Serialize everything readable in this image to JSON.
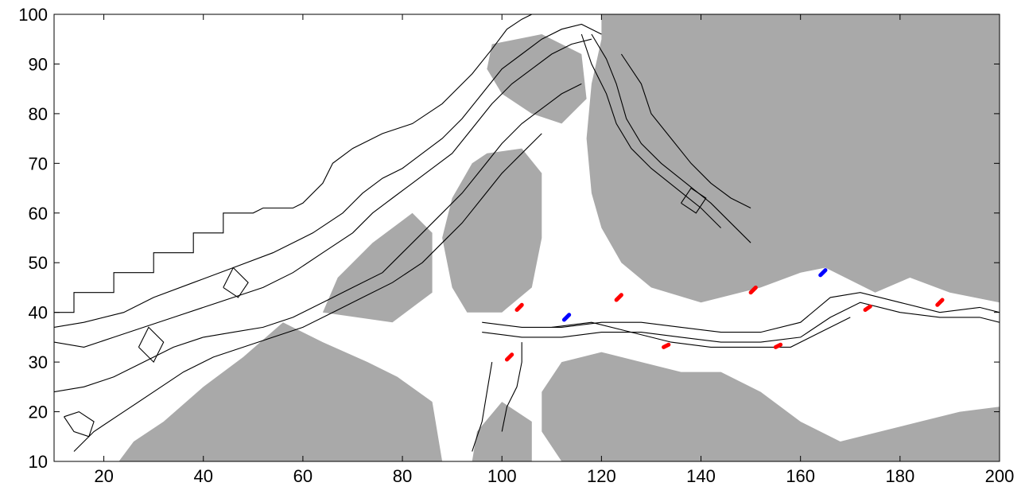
{
  "chart_data": {
    "type": "heatmap",
    "title": "",
    "xlabel": "",
    "ylabel": "",
    "xlim": [
      10,
      200
    ],
    "ylim": [
      10,
      100
    ],
    "x_ticks": [
      20,
      40,
      60,
      80,
      100,
      120,
      140,
      160,
      180,
      200
    ],
    "y_ticks": [
      10,
      20,
      30,
      40,
      50,
      60,
      70,
      80,
      90,
      100
    ],
    "x_tick_labels": [
      "20",
      "40",
      "60",
      "80",
      "100",
      "120",
      "140",
      "160",
      "180",
      "200"
    ],
    "y_tick_labels": [
      "10",
      "20",
      "30",
      "40",
      "50",
      "60",
      "70",
      "80",
      "90",
      "100"
    ],
    "grid": false,
    "colors": {
      "land": "#a9a9a9",
      "water": "#ffffff",
      "contour": "#000000",
      "red_marker": "#ff0000",
      "blue_marker": "#0000ff"
    },
    "land_regions": [
      {
        "name": "upper-right-land",
        "points": [
          [
            120,
            100
          ],
          [
            200,
            100
          ],
          [
            200,
            42
          ],
          [
            190,
            44
          ],
          [
            182,
            47
          ],
          [
            175,
            44
          ],
          [
            165,
            49
          ],
          [
            160,
            48
          ],
          [
            152,
            45
          ],
          [
            140,
            42
          ],
          [
            130,
            45
          ],
          [
            124,
            50
          ],
          [
            120,
            57
          ],
          [
            118,
            64
          ],
          [
            117,
            75
          ],
          [
            118,
            86
          ],
          [
            120,
            95
          ]
        ]
      },
      {
        "name": "central-land-block",
        "points": [
          [
            97,
            72
          ],
          [
            104,
            73
          ],
          [
            108,
            68
          ],
          [
            108,
            55
          ],
          [
            106,
            45
          ],
          [
            100,
            40
          ],
          [
            93,
            40
          ],
          [
            90,
            45
          ],
          [
            88,
            55
          ],
          [
            90,
            63
          ],
          [
            94,
            70
          ]
        ]
      },
      {
        "name": "upper-middle-land",
        "points": [
          [
            98,
            94
          ],
          [
            108,
            96
          ],
          [
            116,
            92
          ],
          [
            117,
            83
          ],
          [
            112,
            78
          ],
          [
            106,
            80
          ],
          [
            100,
            84
          ],
          [
            97,
            89
          ]
        ]
      },
      {
        "name": "lower-right-land",
        "points": [
          [
            112,
            10
          ],
          [
            200,
            10
          ],
          [
            200,
            21
          ],
          [
            192,
            20
          ],
          [
            184,
            18
          ],
          [
            176,
            16
          ],
          [
            168,
            14
          ],
          [
            160,
            18
          ],
          [
            152,
            24
          ],
          [
            144,
            28
          ],
          [
            136,
            28
          ],
          [
            128,
            30
          ],
          [
            120,
            32
          ],
          [
            112,
            30
          ],
          [
            108,
            24
          ],
          [
            108,
            16
          ]
        ]
      },
      {
        "name": "lower-left-land",
        "points": [
          [
            23,
            10
          ],
          [
            88,
            10
          ],
          [
            86,
            22
          ],
          [
            79,
            27
          ],
          [
            73,
            30
          ],
          [
            64,
            34
          ],
          [
            56,
            38
          ],
          [
            48,
            31
          ],
          [
            40,
            25
          ],
          [
            32,
            18
          ],
          [
            26,
            14
          ]
        ]
      },
      {
        "name": "center-left-land",
        "points": [
          [
            64,
            40
          ],
          [
            78,
            38
          ],
          [
            86,
            44
          ],
          [
            86,
            56
          ],
          [
            82,
            60
          ],
          [
            74,
            54
          ],
          [
            67,
            47
          ]
        ]
      },
      {
        "name": "bottom-center-land",
        "points": [
          [
            94,
            10
          ],
          [
            106,
            10
          ],
          [
            106,
            18
          ],
          [
            100,
            22
          ],
          [
            95,
            16
          ]
        ]
      }
    ],
    "contour_lines": [
      [
        [
          10,
          40
        ],
        [
          14,
          40
        ],
        [
          14,
          44
        ],
        [
          22,
          44
        ],
        [
          22,
          48
        ],
        [
          30,
          48
        ],
        [
          30,
          52
        ],
        [
          38,
          52
        ],
        [
          38,
          56
        ],
        [
          44,
          56
        ],
        [
          44,
          60
        ],
        [
          50,
          60
        ],
        [
          52,
          61
        ],
        [
          58,
          61
        ],
        [
          60,
          62
        ],
        [
          64,
          66
        ],
        [
          66,
          70
        ],
        [
          70,
          73
        ],
        [
          76,
          76
        ],
        [
          82,
          78
        ],
        [
          88,
          82
        ],
        [
          94,
          88
        ],
        [
          98,
          93
        ],
        [
          101,
          97
        ],
        [
          104,
          99
        ],
        [
          106,
          100
        ]
      ],
      [
        [
          10,
          37
        ],
        [
          16,
          38
        ],
        [
          24,
          40
        ],
        [
          30,
          43
        ],
        [
          38,
          46
        ],
        [
          46,
          49
        ],
        [
          54,
          52
        ],
        [
          62,
          56
        ],
        [
          68,
          60
        ],
        [
          72,
          64
        ],
        [
          76,
          67
        ],
        [
          80,
          69
        ],
        [
          84,
          72
        ],
        [
          88,
          75
        ],
        [
          92,
          79
        ],
        [
          96,
          84
        ],
        [
          100,
          89
        ],
        [
          104,
          92
        ],
        [
          108,
          95
        ],
        [
          112,
          97
        ],
        [
          116,
          98
        ],
        [
          120,
          96
        ]
      ],
      [
        [
          10,
          34
        ],
        [
          16,
          33
        ],
        [
          22,
          35
        ],
        [
          28,
          37
        ],
        [
          34,
          39
        ],
        [
          40,
          41
        ],
        [
          46,
          43
        ],
        [
          52,
          45
        ],
        [
          58,
          48
        ],
        [
          64,
          52
        ],
        [
          70,
          56
        ],
        [
          74,
          60
        ],
        [
          78,
          63
        ],
        [
          82,
          66
        ],
        [
          86,
          69
        ],
        [
          90,
          72
        ],
        [
          94,
          77
        ],
        [
          98,
          82
        ],
        [
          102,
          86
        ],
        [
          106,
          89
        ],
        [
          110,
          92
        ],
        [
          114,
          94
        ],
        [
          118,
          95
        ]
      ],
      [
        [
          10,
          24
        ],
        [
          16,
          25
        ],
        [
          22,
          27
        ],
        [
          28,
          30
        ],
        [
          34,
          33
        ],
        [
          40,
          35
        ],
        [
          46,
          36
        ],
        [
          52,
          37
        ],
        [
          58,
          39
        ],
        [
          64,
          42
        ],
        [
          70,
          45
        ],
        [
          76,
          48
        ],
        [
          80,
          52
        ],
        [
          84,
          56
        ],
        [
          88,
          60
        ],
        [
          92,
          64
        ],
        [
          96,
          69
        ],
        [
          100,
          74
        ],
        [
          104,
          78
        ],
        [
          108,
          81
        ],
        [
          112,
          84
        ],
        [
          116,
          86
        ]
      ],
      [
        [
          14,
          12
        ],
        [
          18,
          16
        ],
        [
          24,
          20
        ],
        [
          30,
          24
        ],
        [
          36,
          28
        ],
        [
          42,
          31
        ],
        [
          48,
          33
        ],
        [
          54,
          35
        ],
        [
          60,
          37
        ],
        [
          66,
          40
        ],
        [
          72,
          43
        ],
        [
          78,
          46
        ],
        [
          84,
          50
        ],
        [
          88,
          54
        ],
        [
          92,
          58
        ],
        [
          96,
          63
        ],
        [
          100,
          68
        ],
        [
          104,
          72
        ],
        [
          108,
          76
        ]
      ],
      [
        [
          96,
          38
        ],
        [
          104,
          37
        ],
        [
          112,
          37
        ],
        [
          120,
          38
        ],
        [
          128,
          38
        ],
        [
          136,
          37
        ],
        [
          144,
          36
        ],
        [
          152,
          36
        ],
        [
          160,
          38
        ],
        [
          166,
          43
        ],
        [
          172,
          44
        ],
        [
          180,
          42
        ],
        [
          188,
          40
        ],
        [
          196,
          41
        ],
        [
          200,
          40
        ]
      ],
      [
        [
          96,
          36
        ],
        [
          104,
          35
        ],
        [
          112,
          35
        ],
        [
          120,
          36
        ],
        [
          128,
          36
        ],
        [
          136,
          35
        ],
        [
          144,
          34
        ],
        [
          152,
          34
        ],
        [
          160,
          35
        ],
        [
          166,
          39
        ],
        [
          172,
          42
        ],
        [
          180,
          40
        ],
        [
          188,
          39
        ],
        [
          196,
          39
        ],
        [
          200,
          38
        ]
      ],
      [
        [
          110,
          37
        ],
        [
          118,
          38
        ],
        [
          126,
          36
        ],
        [
          134,
          34
        ],
        [
          142,
          33
        ],
        [
          150,
          33
        ],
        [
          158,
          33
        ],
        [
          164,
          36
        ],
        [
          170,
          39
        ]
      ],
      [
        [
          118,
          96
        ],
        [
          121,
          91
        ],
        [
          123,
          86
        ],
        [
          125,
          79
        ],
        [
          128,
          74
        ],
        [
          132,
          70
        ],
        [
          137,
          66
        ],
        [
          142,
          62
        ],
        [
          146,
          58
        ],
        [
          150,
          54
        ]
      ],
      [
        [
          116,
          96
        ],
        [
          118,
          90
        ],
        [
          121,
          84
        ],
        [
          123,
          78
        ],
        [
          126,
          73
        ],
        [
          130,
          69
        ],
        [
          135,
          65
        ],
        [
          140,
          61
        ],
        [
          144,
          57
        ]
      ],
      [
        [
          124,
          92
        ],
        [
          128,
          86
        ],
        [
          130,
          80
        ],
        [
          134,
          75
        ],
        [
          138,
          70
        ],
        [
          142,
          66
        ],
        [
          146,
          63
        ],
        [
          150,
          61
        ]
      ],
      [
        [
          100,
          16
        ],
        [
          101,
          21
        ],
        [
          103,
          25
        ],
        [
          104,
          30
        ],
        [
          104,
          34
        ]
      ],
      [
        [
          94,
          12
        ],
        [
          96,
          18
        ],
        [
          97,
          24
        ],
        [
          98,
          30
        ]
      ],
      [
        [
          12,
          19
        ],
        [
          14,
          16
        ],
        [
          17,
          15
        ],
        [
          18,
          18
        ],
        [
          15,
          20
        ],
        [
          12,
          19
        ]
      ],
      [
        [
          27,
          33
        ],
        [
          30,
          30
        ],
        [
          32,
          34
        ],
        [
          29,
          37
        ],
        [
          27,
          33
        ]
      ],
      [
        [
          44,
          45
        ],
        [
          47,
          43
        ],
        [
          49,
          46
        ],
        [
          46,
          49
        ],
        [
          44,
          45
        ]
      ],
      [
        [
          136,
          62
        ],
        [
          139,
          60
        ],
        [
          141,
          63
        ],
        [
          138,
          65
        ],
        [
          136,
          62
        ]
      ]
    ],
    "markers": [
      {
        "color": "red",
        "x": [
          103,
          104
        ],
        "y": [
          40.5,
          41.5
        ]
      },
      {
        "color": "red",
        "x": [
          101,
          102
        ],
        "y": [
          30.5,
          31.5
        ]
      },
      {
        "color": "red",
        "x": [
          123,
          124
        ],
        "y": [
          42.5,
          43.5
        ]
      },
      {
        "color": "red",
        "x": [
          132.5,
          133.5
        ],
        "y": [
          33,
          33.5
        ]
      },
      {
        "color": "red",
        "x": [
          150,
          151
        ],
        "y": [
          44,
          45
        ]
      },
      {
        "color": "red",
        "x": [
          155,
          156
        ],
        "y": [
          33,
          33.5
        ]
      },
      {
        "color": "red",
        "x": [
          173,
          174
        ],
        "y": [
          40.5,
          41.2
        ]
      },
      {
        "color": "red",
        "x": [
          187.5,
          188.5
        ],
        "y": [
          41.5,
          42.5
        ]
      },
      {
        "color": "blue",
        "x": [
          112.5,
          113.5
        ],
        "y": [
          38.5,
          39.5
        ]
      },
      {
        "color": "blue",
        "x": [
          164,
          165
        ],
        "y": [
          47.5,
          48.5
        ]
      }
    ]
  }
}
